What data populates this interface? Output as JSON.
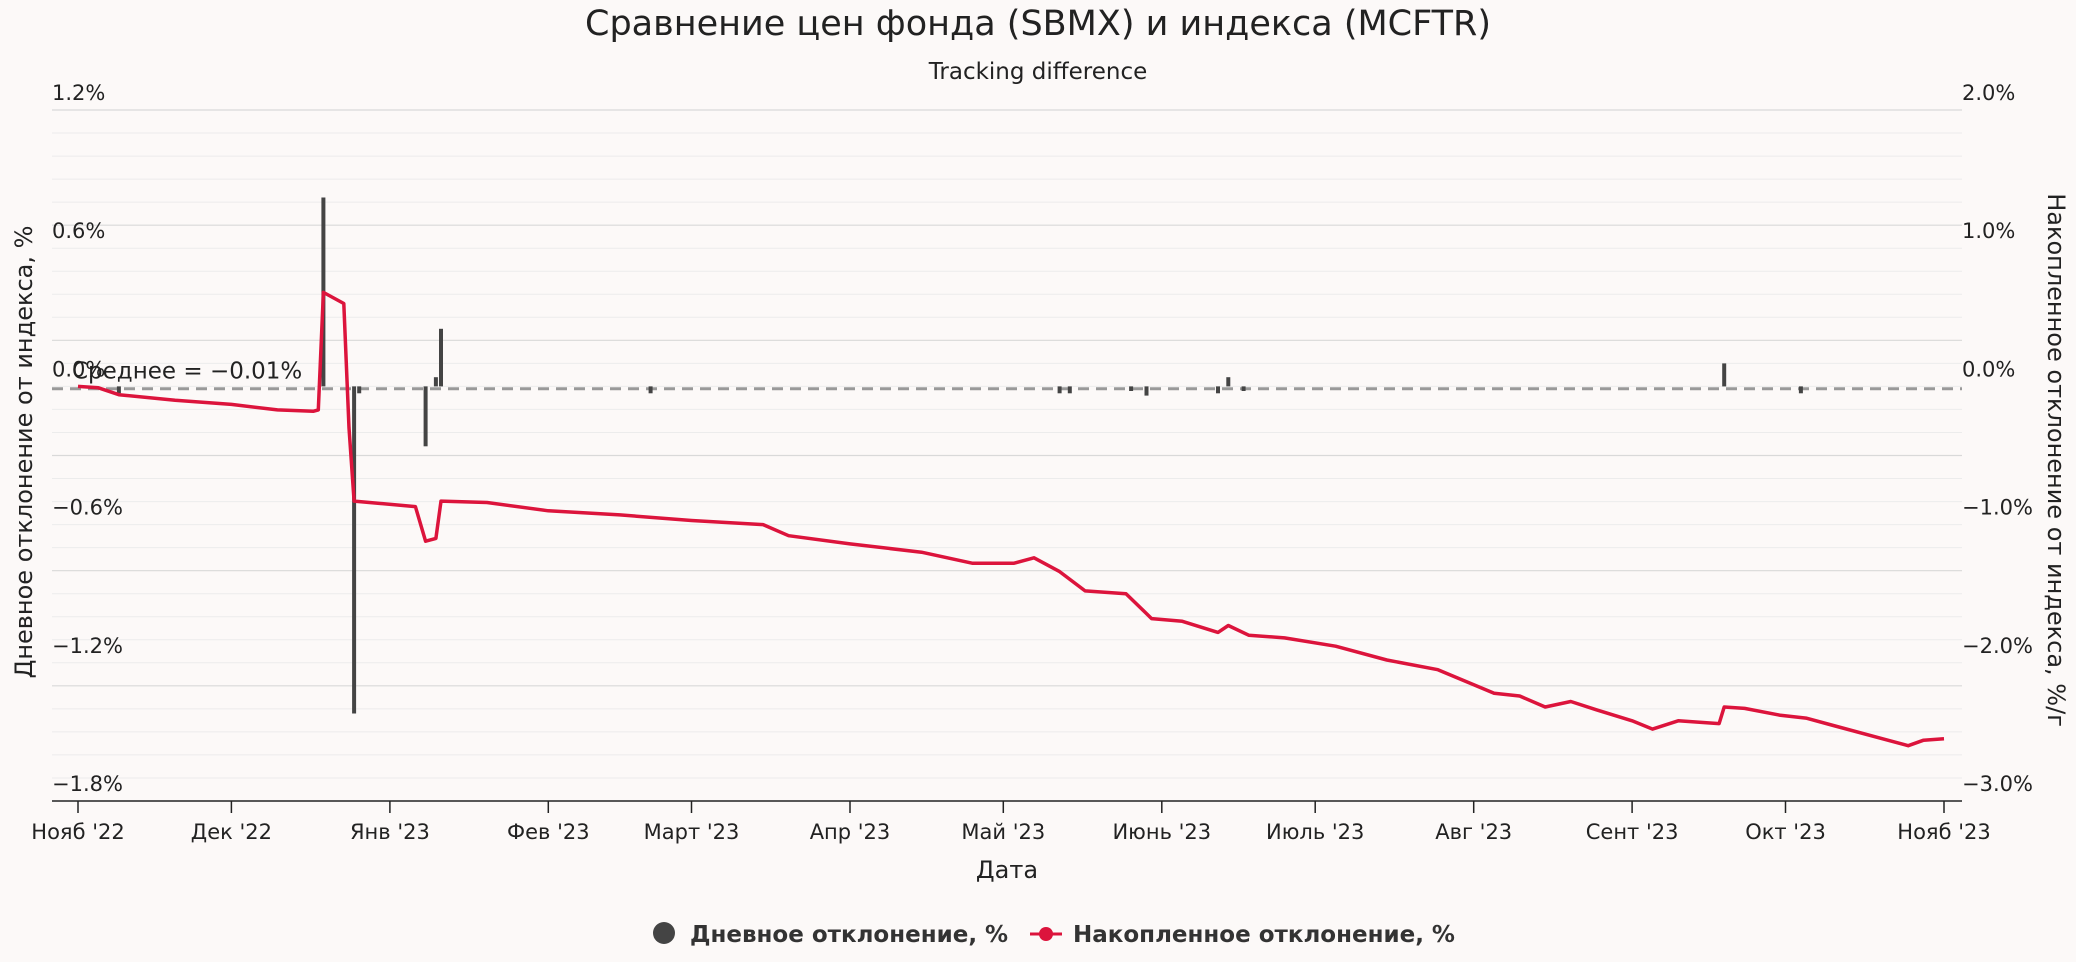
{
  "chart_data": {
    "type": "bar+line",
    "title": "Сравнение цен фонда (SBMX) и индекса (MCFTR)",
    "subtitle": "Tracking difference",
    "xlabel": "Дата",
    "ylabel_left": "Дневное отклонение от индекса, %",
    "ylabel_right": "Накопленное отклонение от индекса, %/г",
    "ylim_left": [
      -1.8,
      1.2
    ],
    "ylim_right": [
      -3.0,
      2.0
    ],
    "left_ticks": [
      "1.2%",
      "0.6%",
      "0.0%",
      "−0.6%",
      "−1.2%",
      "−1.8%"
    ],
    "left_tick_values": [
      1.2,
      0.6,
      0.0,
      -0.6,
      -1.2,
      -1.8
    ],
    "right_ticks": [
      "2.0%",
      "1.0%",
      "0.0%",
      "−1.0%",
      "−2.0%",
      "−3.0%"
    ],
    "right_tick_values": [
      2.0,
      1.0,
      0.0,
      -1.0,
      -2.0,
      -3.0
    ],
    "x_ticks": [
      "Нояб '22",
      "Дек '22",
      "Янв '23",
      "Фев '23",
      "Март '23",
      "Апр '23",
      "Май '23",
      "Июнь '23",
      "Июль '23",
      "Авг '23",
      "Сент '23",
      "Окт '23",
      "Нояб '23"
    ],
    "x_tick_dates": [
      "2022-11-01",
      "2022-12-01",
      "2023-01-01",
      "2023-02-01",
      "2023-03-01",
      "2023-04-01",
      "2023-05-01",
      "2023-06-01",
      "2023-07-01",
      "2023-08-01",
      "2023-09-01",
      "2023-10-01",
      "2023-11-01"
    ],
    "x_range": [
      "2022-11-01",
      "2023-11-01"
    ],
    "mean": {
      "label": "Среднее = −0.01%",
      "value": -0.01,
      "color": "#999999"
    },
    "grid": true,
    "legend_position": "bottom-center",
    "series": [
      {
        "name": "Дневное отклонение, %",
        "type": "bar",
        "axis": "left",
        "color": "#444444",
        "points": [
          {
            "x": "2022-11-09",
            "y": -0.03
          },
          {
            "x": "2022-12-19",
            "y": 0.82
          },
          {
            "x": "2022-12-25",
            "y": -1.42
          },
          {
            "x": "2022-12-26",
            "y": -0.03
          },
          {
            "x": "2023-01-08",
            "y": -0.26
          },
          {
            "x": "2023-01-10",
            "y": 0.04
          },
          {
            "x": "2023-01-11",
            "y": 0.25
          },
          {
            "x": "2023-02-21",
            "y": -0.03
          },
          {
            "x": "2023-05-12",
            "y": -0.03
          },
          {
            "x": "2023-05-14",
            "y": -0.03
          },
          {
            "x": "2023-05-26",
            "y": -0.02
          },
          {
            "x": "2023-05-29",
            "y": -0.04
          },
          {
            "x": "2023-06-12",
            "y": -0.03
          },
          {
            "x": "2023-06-14",
            "y": 0.04
          },
          {
            "x": "2023-06-17",
            "y": -0.02
          },
          {
            "x": "2023-09-19",
            "y": 0.1
          },
          {
            "x": "2023-10-04",
            "y": -0.03
          }
        ]
      },
      {
        "name": "Накопленное отклонение, %",
        "type": "line",
        "axis": "right",
        "color": "#dc143c",
        "points": [
          {
            "x": "2022-11-01",
            "y": 0.0
          },
          {
            "x": "2022-11-05",
            "y": -0.01
          },
          {
            "x": "2022-11-09",
            "y": -0.06
          },
          {
            "x": "2022-11-20",
            "y": -0.1
          },
          {
            "x": "2022-12-01",
            "y": -0.13
          },
          {
            "x": "2022-12-10",
            "y": -0.17
          },
          {
            "x": "2022-12-17",
            "y": -0.18
          },
          {
            "x": "2022-12-18",
            "y": -0.17
          },
          {
            "x": "2022-12-19",
            "y": 0.68
          },
          {
            "x": "2022-12-23",
            "y": 0.6
          },
          {
            "x": "2022-12-24",
            "y": -0.3
          },
          {
            "x": "2022-12-25",
            "y": -0.83
          },
          {
            "x": "2022-12-28",
            "y": -0.84
          },
          {
            "x": "2023-01-06",
            "y": -0.87
          },
          {
            "x": "2023-01-08",
            "y": -1.12
          },
          {
            "x": "2023-01-10",
            "y": -1.1
          },
          {
            "x": "2023-01-11",
            "y": -0.83
          },
          {
            "x": "2023-01-20",
            "y": -0.84
          },
          {
            "x": "2023-02-01",
            "y": -0.9
          },
          {
            "x": "2023-02-15",
            "y": -0.93
          },
          {
            "x": "2023-03-01",
            "y": -0.97
          },
          {
            "x": "2023-03-15",
            "y": -1.0
          },
          {
            "x": "2023-03-20",
            "y": -1.08
          },
          {
            "x": "2023-04-01",
            "y": -1.14
          },
          {
            "x": "2023-04-15",
            "y": -1.2
          },
          {
            "x": "2023-04-25",
            "y": -1.28
          },
          {
            "x": "2023-05-03",
            "y": -1.28
          },
          {
            "x": "2023-05-07",
            "y": -1.24
          },
          {
            "x": "2023-05-12",
            "y": -1.34
          },
          {
            "x": "2023-05-17",
            "y": -1.48
          },
          {
            "x": "2023-05-25",
            "y": -1.5
          },
          {
            "x": "2023-05-30",
            "y": -1.68
          },
          {
            "x": "2023-06-05",
            "y": -1.7
          },
          {
            "x": "2023-06-12",
            "y": -1.78
          },
          {
            "x": "2023-06-14",
            "y": -1.73
          },
          {
            "x": "2023-06-18",
            "y": -1.8
          },
          {
            "x": "2023-06-25",
            "y": -1.82
          },
          {
            "x": "2023-07-05",
            "y": -1.88
          },
          {
            "x": "2023-07-15",
            "y": -1.98
          },
          {
            "x": "2023-07-25",
            "y": -2.05
          },
          {
            "x": "2023-08-05",
            "y": -2.22
          },
          {
            "x": "2023-08-10",
            "y": -2.24
          },
          {
            "x": "2023-08-15",
            "y": -2.32
          },
          {
            "x": "2023-08-20",
            "y": -2.28
          },
          {
            "x": "2023-08-25",
            "y": -2.34
          },
          {
            "x": "2023-09-01",
            "y": -2.42
          },
          {
            "x": "2023-09-05",
            "y": -2.48
          },
          {
            "x": "2023-09-10",
            "y": -2.42
          },
          {
            "x": "2023-09-18",
            "y": -2.44
          },
          {
            "x": "2023-09-19",
            "y": -2.32
          },
          {
            "x": "2023-09-23",
            "y": -2.33
          },
          {
            "x": "2023-09-30",
            "y": -2.38
          },
          {
            "x": "2023-10-05",
            "y": -2.4
          },
          {
            "x": "2023-10-10",
            "y": -2.45
          },
          {
            "x": "2023-10-20",
            "y": -2.55
          },
          {
            "x": "2023-10-25",
            "y": -2.6
          },
          {
            "x": "2023-10-28",
            "y": -2.56
          },
          {
            "x": "2023-11-01",
            "y": -2.55
          }
        ]
      }
    ]
  }
}
